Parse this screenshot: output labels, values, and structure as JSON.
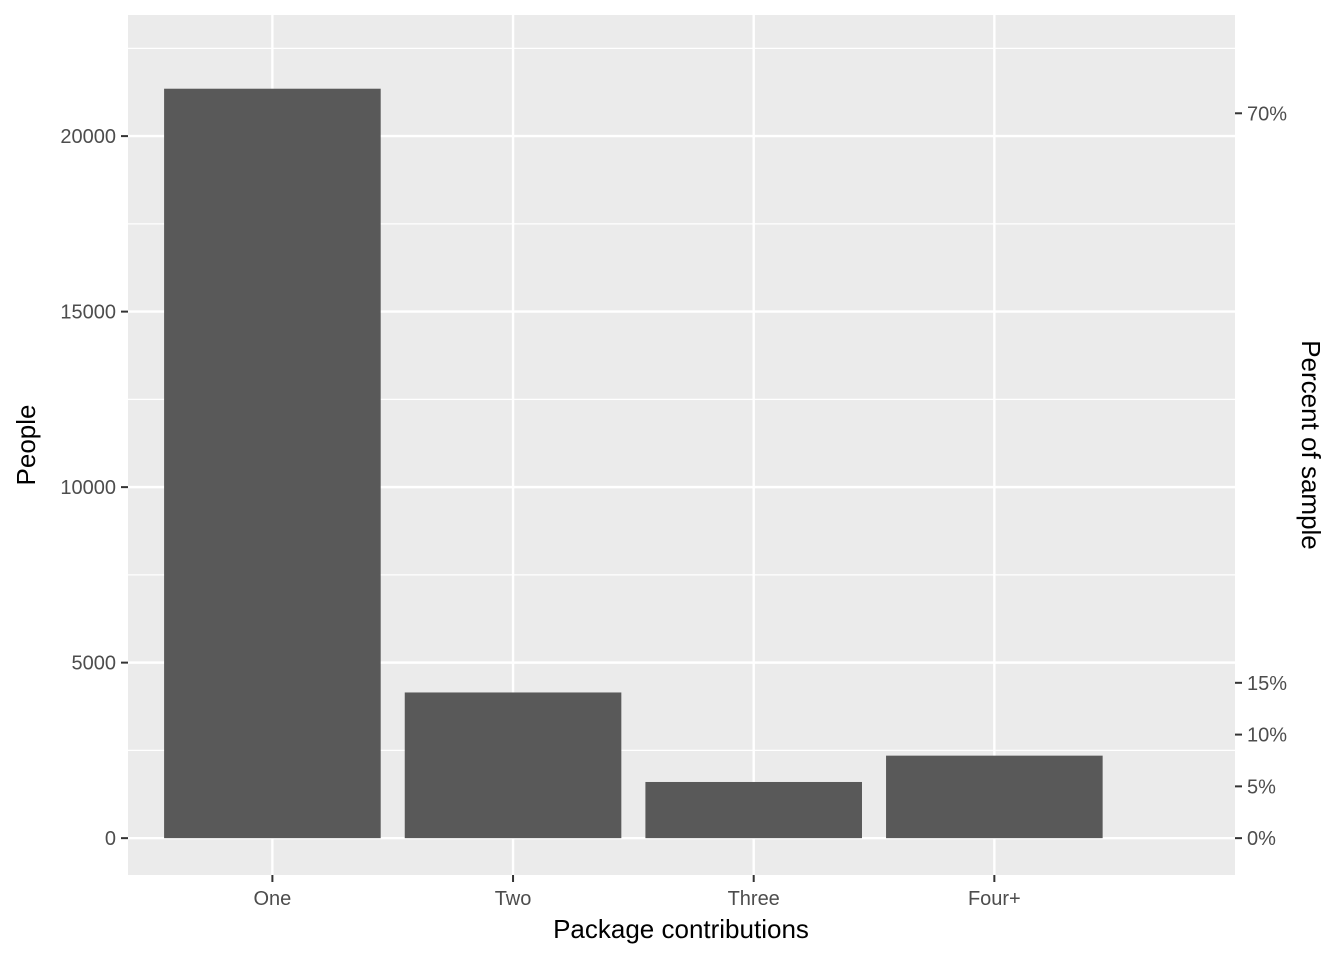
{
  "chart_data": {
    "type": "bar",
    "title": "",
    "xlabel": "Package contributions",
    "ylabel": "People",
    "ylabel_right": "Percent of sample",
    "categories": [
      "One",
      "Two",
      "Three",
      "Four+"
    ],
    "values": [
      21350,
      4150,
      1600,
      2350
    ],
    "ylim": [
      -1050,
      23450
    ],
    "y_ticks": [
      0,
      5000,
      10000,
      15000,
      20000
    ],
    "y_tick_labels": [
      "0",
      "5000",
      "10000",
      "15000",
      "20000"
    ],
    "right_ticks": [
      {
        "value": 0,
        "label": "0%"
      },
      {
        "value": 5,
        "label": "5%"
      },
      {
        "value": 10,
        "label": "10%"
      },
      {
        "value": 15,
        "label": "15%"
      },
      {
        "value": 70,
        "label": "70%"
      }
    ],
    "right_scale_people_per_percent": 295,
    "grid": true,
    "legend": "none",
    "colors": {
      "bar": "#595959",
      "panel": "#ebebeb",
      "grid": "#ffffff",
      "text": "#4d4d4d",
      "tick": "#333333"
    }
  }
}
